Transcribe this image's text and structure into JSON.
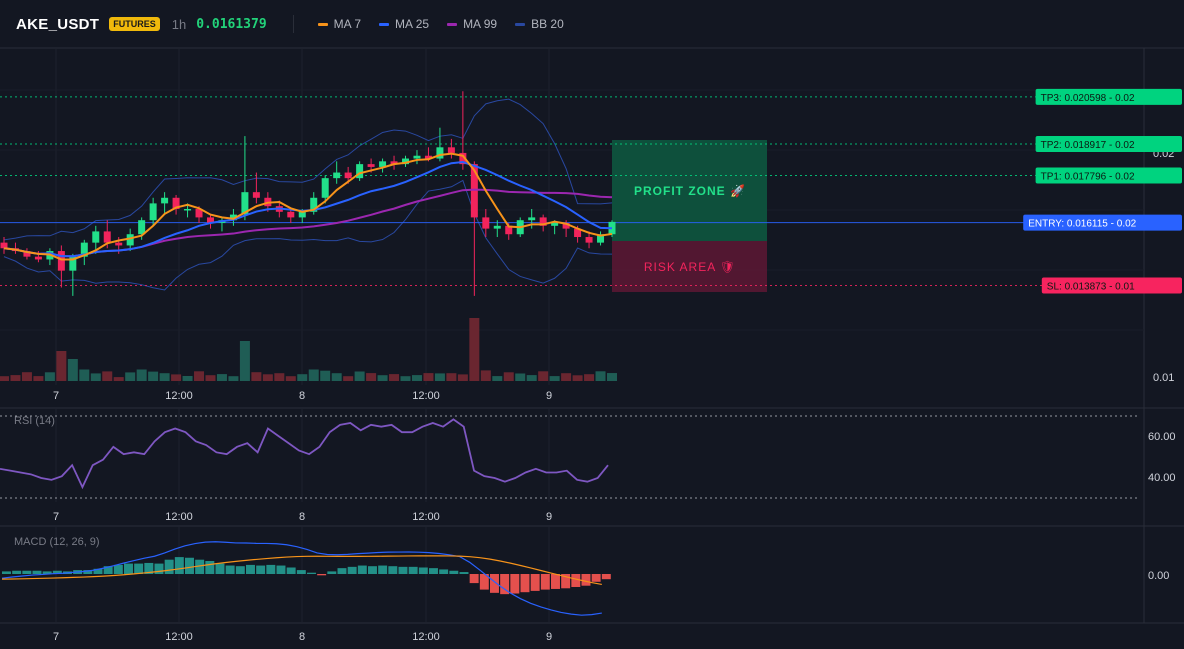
{
  "header": {
    "symbol": "AKE_USDT",
    "badge": "FUTURES",
    "timeframe": "1h",
    "price": "0.0161379"
  },
  "legend": [
    {
      "label": "MA 7",
      "color": "#f7931a"
    },
    {
      "label": "MA 25",
      "color": "#2962ff"
    },
    {
      "label": "MA 99",
      "color": "#9c27b0"
    },
    {
      "label": "BB 20",
      "color": "#2948a0"
    }
  ],
  "colors": {
    "up": "#26a69a",
    "upBright": "#22e08a",
    "down": "#ef5350",
    "downBright": "#f2245c",
    "profit": "#00d37f",
    "risk": "#f7245f",
    "entry": "#2962ff"
  },
  "xaxis": {
    "ticks": [
      "7",
      "12:00",
      "8",
      "12:00",
      "9"
    ]
  },
  "price_axis": {
    "ticks": [
      "0.02",
      "0.01"
    ]
  },
  "levels": [
    {
      "name": "tp3",
      "label": "TP3: 0.020598",
      "suffix": "0.02",
      "price": 0.020598,
      "color": "#00d37f"
    },
    {
      "name": "tp2",
      "label": "TP2: 0.018917",
      "suffix": "0.02",
      "price": 0.018917,
      "color": "#00d37f"
    },
    {
      "name": "tp1",
      "label": "TP1: 0.017796",
      "suffix": "0.02",
      "price": 0.017796,
      "color": "#00d37f"
    },
    {
      "name": "entry",
      "label": "ENTRY: 0.016115",
      "suffix": "0.02",
      "price": 0.016115,
      "color": "#2962ff"
    },
    {
      "name": "sl",
      "label": "SL: 0.013873",
      "suffix": "0.01",
      "price": 0.013873,
      "color": "#f7245f"
    }
  ],
  "zones": {
    "profit": "PROFIT ZONE 🚀",
    "risk": "RISK AREA 🛡"
  },
  "rsi": {
    "label": "RSI (14)",
    "ticks": [
      "60.00",
      "40.00"
    ]
  },
  "macd": {
    "label": "MACD (12, 26, 9)",
    "ticks": [
      "0.00"
    ]
  },
  "chart_data": [
    {
      "type": "candlestick",
      "ylim": [
        0.0105,
        0.0222
      ],
      "categories": [
        "7",
        "12:00",
        "8",
        "12:00",
        "9"
      ],
      "ohlc": [
        [
          0.0154,
          0.0156,
          0.015,
          0.0152
        ],
        [
          0.0152,
          0.0154,
          0.015,
          0.0151
        ],
        [
          0.0151,
          0.0152,
          0.0148,
          0.0149
        ],
        [
          0.0149,
          0.0151,
          0.0147,
          0.0148
        ],
        [
          0.0148,
          0.0152,
          0.0146,
          0.0151
        ],
        [
          0.0151,
          0.0153,
          0.0138,
          0.0144
        ],
        [
          0.0144,
          0.015,
          0.0135,
          0.0149
        ],
        [
          0.0149,
          0.0155,
          0.0146,
          0.0154
        ],
        [
          0.0154,
          0.016,
          0.015,
          0.0158
        ],
        [
          0.0158,
          0.0162,
          0.0152,
          0.0154
        ],
        [
          0.0154,
          0.0156,
          0.015,
          0.0153
        ],
        [
          0.0153,
          0.0159,
          0.0151,
          0.0157
        ],
        [
          0.0157,
          0.0163,
          0.0155,
          0.0162
        ],
        [
          0.0162,
          0.017,
          0.016,
          0.0168
        ],
        [
          0.0168,
          0.0172,
          0.0164,
          0.017
        ],
        [
          0.017,
          0.0171,
          0.0164,
          0.0166
        ],
        [
          0.0166,
          0.0168,
          0.0163,
          0.0166
        ],
        [
          0.0166,
          0.0167,
          0.0161,
          0.0163
        ],
        [
          0.0163,
          0.0164,
          0.0159,
          0.0161
        ],
        [
          0.0161,
          0.0163,
          0.0158,
          0.0162
        ],
        [
          0.0162,
          0.0166,
          0.016,
          0.0164
        ],
        [
          0.0164,
          0.0192,
          0.0162,
          0.0172
        ],
        [
          0.0172,
          0.0179,
          0.0168,
          0.017
        ],
        [
          0.017,
          0.0172,
          0.0165,
          0.0167
        ],
        [
          0.0167,
          0.0169,
          0.0163,
          0.0165
        ],
        [
          0.0165,
          0.0166,
          0.0161,
          0.0163
        ],
        [
          0.0163,
          0.0166,
          0.0161,
          0.0165
        ],
        [
          0.0165,
          0.0172,
          0.0164,
          0.017
        ],
        [
          0.017,
          0.0178,
          0.0168,
          0.0177
        ],
        [
          0.0177,
          0.0183,
          0.0175,
          0.0179
        ],
        [
          0.0179,
          0.0181,
          0.0175,
          0.0177
        ],
        [
          0.0177,
          0.0183,
          0.0176,
          0.0182
        ],
        [
          0.0182,
          0.0184,
          0.0179,
          0.0181
        ],
        [
          0.0181,
          0.0184,
          0.0179,
          0.0183
        ],
        [
          0.0183,
          0.0185,
          0.018,
          0.0182
        ],
        [
          0.0182,
          0.0185,
          0.0181,
          0.0184
        ],
        [
          0.0184,
          0.0187,
          0.0182,
          0.0185
        ],
        [
          0.0185,
          0.0188,
          0.0183,
          0.0184
        ],
        [
          0.0184,
          0.0195,
          0.0183,
          0.0188
        ],
        [
          0.0188,
          0.0191,
          0.0184,
          0.0186
        ],
        [
          0.0186,
          0.0208,
          0.018,
          0.0182
        ],
        [
          0.0182,
          0.0183,
          0.0135,
          0.0163
        ],
        [
          0.0163,
          0.0166,
          0.0156,
          0.0159
        ],
        [
          0.0159,
          0.0162,
          0.0156,
          0.016
        ],
        [
          0.016,
          0.0161,
          0.0155,
          0.0157
        ],
        [
          0.0157,
          0.0163,
          0.0156,
          0.0162
        ],
        [
          0.0162,
          0.0166,
          0.0159,
          0.0163
        ],
        [
          0.0163,
          0.0164,
          0.0158,
          0.016
        ],
        [
          0.016,
          0.0162,
          0.0157,
          0.0161
        ],
        [
          0.0161,
          0.0162,
          0.0156,
          0.0159
        ],
        [
          0.0159,
          0.016,
          0.0154,
          0.0156
        ],
        [
          0.0156,
          0.0158,
          0.0152,
          0.0154
        ],
        [
          0.0154,
          0.0158,
          0.0153,
          0.0157
        ],
        [
          0.0157,
          0.0162,
          0.0156,
          0.01614
        ]
      ]
    },
    {
      "type": "line",
      "title": "RSI (14)",
      "ylim": [
        26,
        74
      ],
      "values": [
        43,
        42,
        41,
        40,
        38,
        37,
        39,
        45,
        33,
        45,
        48,
        55,
        51,
        52,
        51,
        58,
        63,
        65,
        63,
        58,
        56,
        52,
        51,
        55,
        57,
        52,
        65,
        61,
        57,
        53,
        51,
        55,
        63,
        67,
        68,
        64,
        67,
        66,
        67,
        63,
        63,
        66,
        68,
        66,
        70,
        66,
        42,
        39,
        38,
        36,
        38,
        41,
        43,
        41,
        41,
        42,
        37,
        36,
        38,
        45
      ]
    },
    {
      "type": "bar",
      "title": "MACD (12, 26, 9)",
      "values": [
        0.4,
        0.5,
        0.5,
        0.5,
        0.4,
        0.5,
        0.4,
        0.6,
        0.6,
        0.8,
        1.2,
        1.4,
        1.6,
        1.6,
        1.7,
        1.6,
        2.2,
        2.6,
        2.5,
        2.2,
        2.0,
        1.6,
        1.3,
        1.2,
        1.4,
        1.3,
        1.4,
        1.3,
        1.0,
        0.6,
        0.2,
        -0.2,
        0.4,
        0.9,
        1.1,
        1.3,
        1.2,
        1.3,
        1.2,
        1.1,
        1.1,
        1.0,
        0.9,
        0.7,
        0.5,
        0.3,
        -1.4,
        -2.4,
        -2.9,
        -3.1,
        -3.0,
        -2.8,
        -2.6,
        -2.4,
        -2.3,
        -2.2,
        -2.0,
        -1.8,
        -1.2,
        -0.8
      ]
    }
  ]
}
